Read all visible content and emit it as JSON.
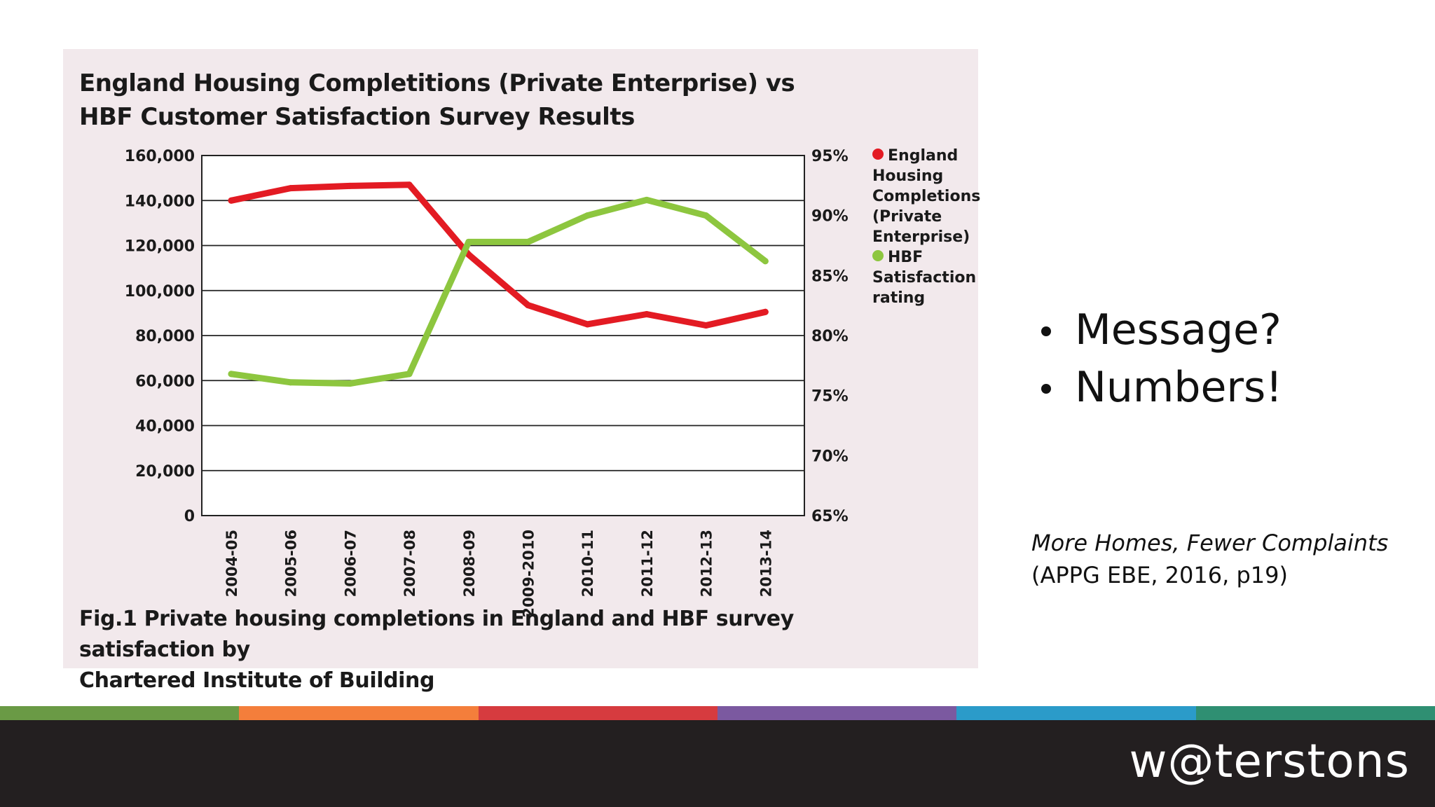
{
  "figure": {
    "title_lines": [
      "England Housing Completitions (Private Enterprise) vs",
      "HBF Customer Satisfaction Survey Results"
    ],
    "caption_lines": [
      "Fig.1 Private housing completions in England and HBF survey satisfaction by",
      "Chartered Institute of Building"
    ]
  },
  "chart_data": {
    "type": "line",
    "categories": [
      "2004-05",
      "2005-06",
      "2006-07",
      "2007-08",
      "2008-09",
      "2009-2010",
      "2010-11",
      "2011-12",
      "2012-13",
      "2013-14"
    ],
    "left_axis": {
      "min": 0,
      "max": 160000,
      "ticks": [
        0,
        20000,
        40000,
        60000,
        80000,
        100000,
        120000,
        140000,
        160000
      ],
      "tick_labels": [
        "0",
        "20,000",
        "40,000",
        "60,000",
        "80,000",
        "100,000",
        "120,000",
        "140,000",
        "160,000"
      ]
    },
    "right_axis": {
      "min": 65,
      "max": 95,
      "ticks": [
        65,
        70,
        75,
        80,
        85,
        90,
        95
      ],
      "tick_labels": [
        "65%",
        "70%",
        "75%",
        "80%",
        "85%",
        "90%",
        "95%"
      ]
    },
    "grid": true,
    "legend_position": "right",
    "series": [
      {
        "name": "England Housing Completions (Private Enterprise)",
        "axis": "left",
        "color": "#e31b23",
        "values": [
          140000,
          145500,
          146500,
          147000,
          116000,
          93500,
          85000,
          89500,
          84500,
          90500
        ]
      },
      {
        "name": "HBF Satisfaction rating",
        "axis": "right",
        "color": "#8dc63f",
        "values": [
          76.8,
          76.1,
          76.0,
          76.8,
          87.8,
          87.8,
          90.0,
          91.3,
          90.0,
          86.2
        ]
      }
    ]
  },
  "legend": {
    "entries": [
      {
        "color": "#e31b23",
        "lines": [
          "England",
          "Housing",
          "Completions",
          "(Private",
          "Enterprise)"
        ]
      },
      {
        "color": "#8dc63f",
        "lines": [
          "HBF",
          "Satisfaction",
          "rating"
        ]
      }
    ]
  },
  "bullets": [
    "Message?",
    "Numbers!"
  ],
  "citation": {
    "title": "More Homes, Fewer Complaints",
    "detail": "(APPG EBE, 2016, p19)"
  },
  "stripe_colors": [
    "#6a9a45",
    "#f47e3b",
    "#d63b3f",
    "#7b59a0",
    "#2b9bc9",
    "#2f8f72"
  ],
  "footer": {
    "logo": "w@terstons"
  }
}
